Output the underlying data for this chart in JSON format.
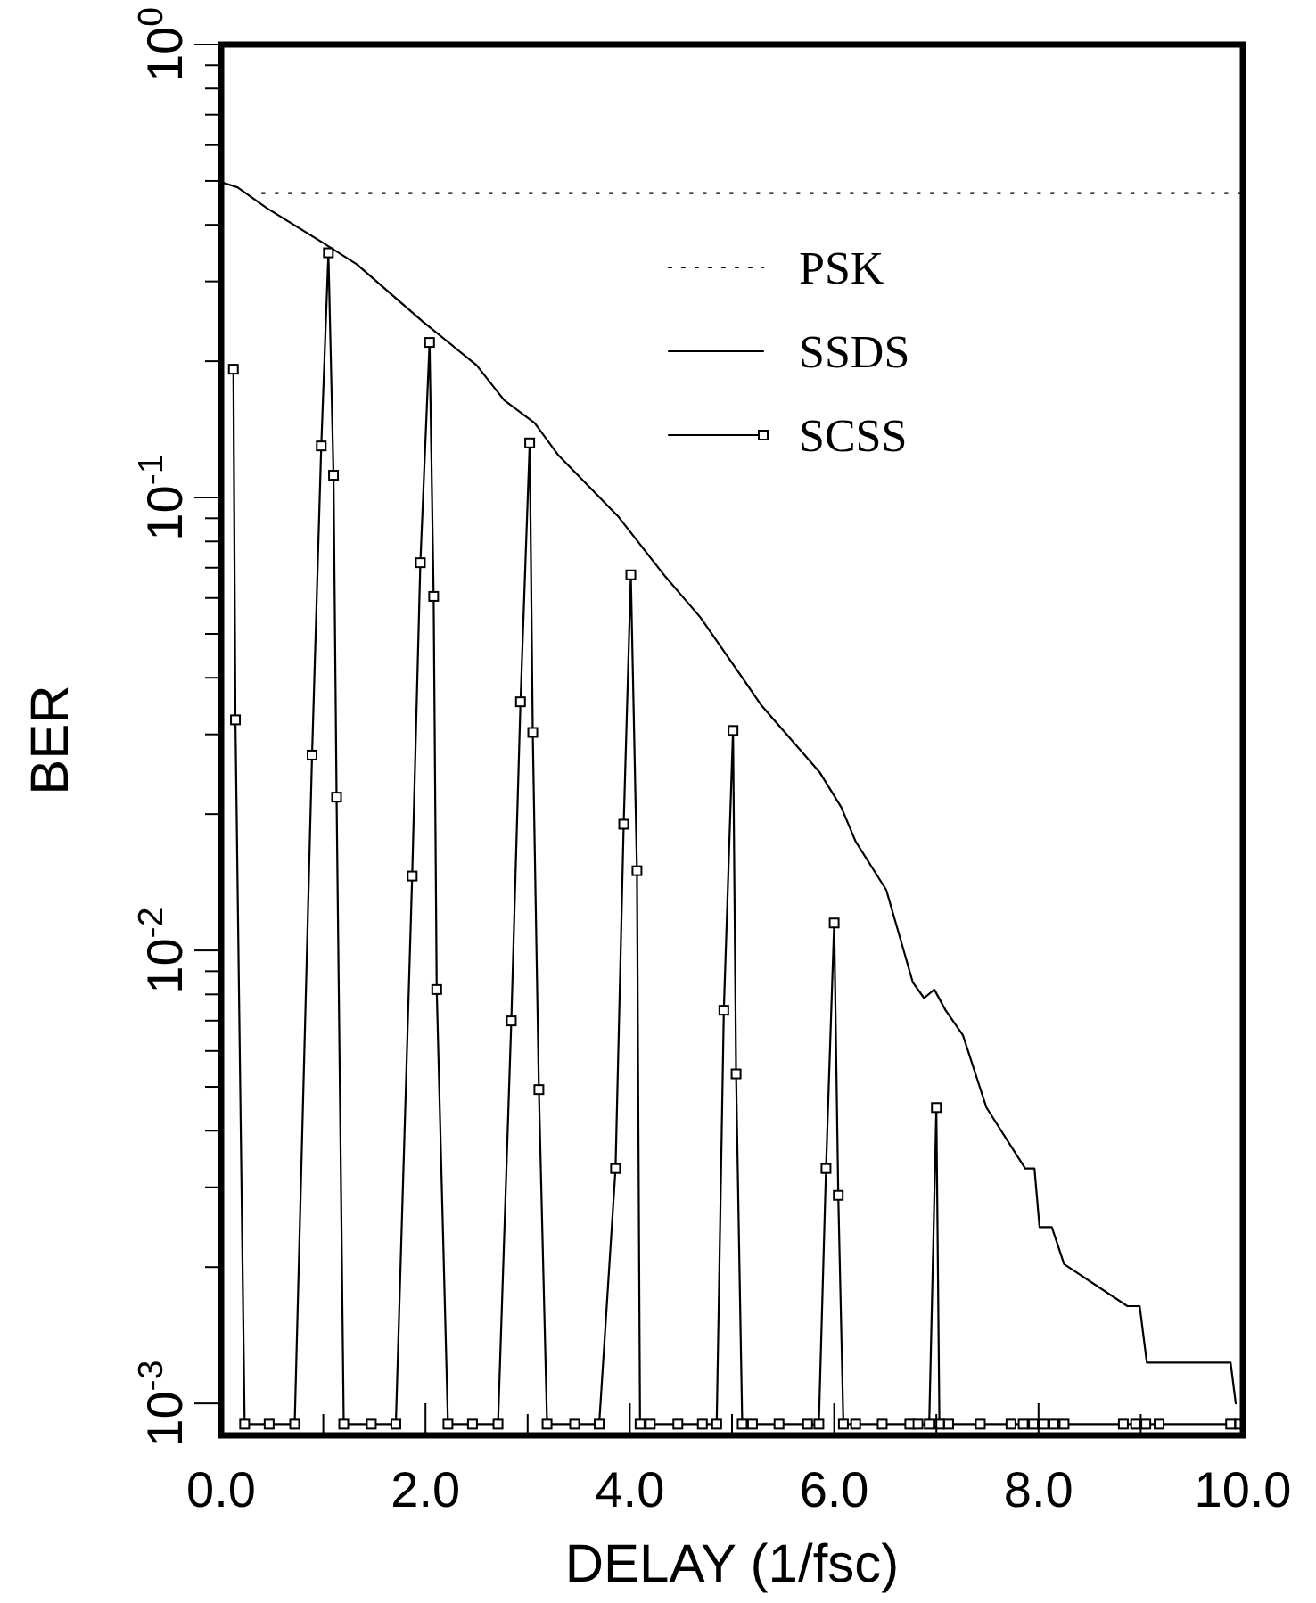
{
  "chart_data": {
    "type": "line",
    "xlabel": "DELAY (1/fsc)",
    "ylabel": "BER",
    "log": "y",
    "legend": "top right",
    "xlim": [
      0,
      10
    ],
    "ylim": [
      0.00085,
      1
    ],
    "xticks": [
      {
        "value": 0,
        "label": "0.0"
      },
      {
        "value": 1,
        "label": null
      },
      {
        "value": 2,
        "label": "2.0"
      },
      {
        "value": 3,
        "label": null
      },
      {
        "value": 4,
        "label": "4.0"
      },
      {
        "value": 5,
        "label": null
      },
      {
        "value": 6,
        "label": "6.0"
      },
      {
        "value": 7,
        "label": null
      },
      {
        "value": 8,
        "label": "8.0"
      },
      {
        "value": 9,
        "label": null
      },
      {
        "value": 10,
        "label": "10.0"
      }
    ],
    "yticks": [
      {
        "value": 0.001,
        "label": "10$^{-3}$"
      },
      {
        "value": 0.002,
        "label": null
      },
      {
        "value": 0.003,
        "label": null
      },
      {
        "value": 0.004,
        "label": null
      },
      {
        "value": 0.005,
        "label": null
      },
      {
        "value": 0.006,
        "label": null
      },
      {
        "value": 0.007,
        "label": null
      },
      {
        "value": 0.008,
        "label": null
      },
      {
        "value": 0.009,
        "label": null
      },
      {
        "value": 0.01,
        "label": "10$^{-2}$"
      },
      {
        "value": 0.02,
        "label": null
      },
      {
        "value": 0.03,
        "label": null
      },
      {
        "value": 0.04,
        "label": null
      },
      {
        "value": 0.05,
        "label": null
      },
      {
        "value": 0.06,
        "label": null
      },
      {
        "value": 0.07,
        "label": null
      },
      {
        "value": 0.08,
        "label": null
      },
      {
        "value": 0.09,
        "label": null
      },
      {
        "value": 0.1,
        "label": "10$^{-1}$"
      },
      {
        "value": 0.2,
        "label": null
      },
      {
        "value": 0.3,
        "label": null
      },
      {
        "value": 0.4,
        "label": null
      },
      {
        "value": 0.5,
        "label": null
      },
      {
        "value": 0.6,
        "label": null
      },
      {
        "value": 0.7,
        "label": null
      },
      {
        "value": 0.8,
        "label": null
      },
      {
        "value": 0.9,
        "label": null
      },
      {
        "value": 1,
        "label": "10$^{0}$"
      }
    ],
    "series": [
      {
        "name": "PSK",
        "color": "#000000",
        "line_style": "dotted",
        "marker": "none",
        "x": [
          0.4,
          10
        ],
        "values": [
          0.47,
          0.47
        ]
      },
      {
        "name": "SSDS",
        "color": "#000000",
        "line_style": "solid",
        "marker": "none",
        "x": [
          0,
          0.16,
          0.45,
          0.98,
          1.33,
          1.97,
          2.5,
          2.77,
          3.07,
          3.3,
          3.89,
          4.35,
          4.69,
          5.17,
          5.29,
          5.86,
          6.07,
          6.21,
          6.51,
          6.77,
          6.88,
          6.98,
          7.09,
          7.26,
          7.49,
          7.87,
          7.96,
          8.01,
          8.13,
          8.25,
          8.87,
          8.99,
          9.06,
          9.88,
          9.93
        ],
        "values": [
          0.497,
          0.484,
          0.435,
          0.367,
          0.327,
          0.245,
          0.196,
          0.164,
          0.146,
          0.124,
          0.0906,
          0.0668,
          0.0544,
          0.038,
          0.0347,
          0.0247,
          0.0207,
          0.0174,
          0.0136,
          0.0085,
          0.00785,
          0.0082,
          0.00738,
          0.0065,
          0.0045,
          0.0033,
          0.0033,
          0.00245,
          0.00245,
          0.00203,
          0.00164,
          0.00164,
          0.00123,
          0.00123,
          0.001
        ]
      },
      {
        "name": "SCSS",
        "color": "#000000",
        "line_style": "solid",
        "marker": "square",
        "x": [
          0.12,
          0.14,
          0.23,
          0.47,
          0.72,
          0.89,
          0.98,
          1.05,
          1.1,
          1.13,
          1.2,
          1.47,
          1.71,
          1.87,
          1.95,
          2.04,
          2.08,
          2.11,
          2.22,
          2.46,
          2.71,
          2.84,
          2.93,
          3.02,
          3.05,
          3.11,
          3.19,
          3.46,
          3.7,
          3.86,
          3.94,
          4.01,
          4.07,
          4.1,
          4.2,
          4.47,
          4.71,
          4.85,
          4.92,
          5.01,
          5.04,
          5.1,
          5.2,
          5.46,
          5.74,
          5.85,
          5.92,
          6,
          6.04,
          6.09,
          6.21,
          6.47,
          6.74,
          6.82,
          6.93,
          7,
          7.03,
          7.12,
          7.43,
          7.73,
          7.85,
          7.95,
          8.05,
          8.15,
          8.25,
          8.83,
          8.95,
          9.05,
          9.18,
          9.88,
          9.97
        ],
        "values": [
          0.192,
          0.0323,
          0.0009,
          0.0009,
          0.0009,
          0.027,
          0.13,
          0.347,
          0.112,
          0.0218,
          0.0009,
          0.0009,
          0.0009,
          0.0146,
          0.0718,
          0.22,
          0.0605,
          0.0082,
          0.0009,
          0.0009,
          0.0009,
          0.00699,
          0.0354,
          0.132,
          0.0303,
          0.00493,
          0.0009,
          0.0009,
          0.0009,
          0.0033,
          0.019,
          0.0675,
          0.015,
          0.0009,
          0.0009,
          0.0009,
          0.0009,
          0.0009,
          0.00738,
          0.0306,
          0.00534,
          0.0009,
          0.0009,
          0.0009,
          0.0009,
          0.0009,
          0.0033,
          0.0115,
          0.00288,
          0.0009,
          0.0009,
          0.0009,
          0.0009,
          0.0009,
          0.0009,
          0.0045,
          0.0009,
          0.0009,
          0.0009,
          0.0009,
          0.0009,
          0.0009,
          0.0009,
          0.0009,
          0.0009,
          0.0009,
          0.0009,
          0.0009,
          0.0009,
          0.0009,
          0.0009
        ]
      }
    ]
  }
}
